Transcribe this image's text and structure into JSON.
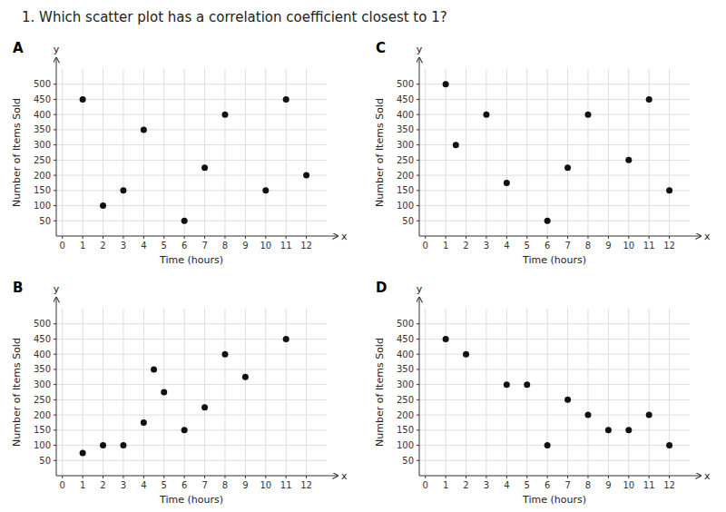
{
  "title": "1. Which scatter plot has a correlation coefficient closest to 1?",
  "chart_data": [
    {
      "type": "scatter",
      "title": "A",
      "x": [
        1,
        2,
        3,
        4,
        6,
        7,
        8,
        10,
        11,
        12
      ],
      "values": [
        450,
        100,
        150,
        350,
        50,
        225,
        400,
        150,
        450,
        200
      ],
      "color": "#111111",
      "xlabel": "Time (hours)",
      "ylabel": "Number of Items Sold",
      "annotations": [
        "x",
        "y"
      ],
      "xlim": [
        -0.3,
        13.0
      ],
      "ylim": [
        0,
        550
      ],
      "xticks": [
        0,
        1,
        2,
        3,
        4,
        5,
        6,
        7,
        8,
        9,
        10,
        11,
        12
      ],
      "yticks": [
        50,
        100,
        150,
        200,
        250,
        300,
        350,
        400,
        450,
        500
      ],
      "grid": true
    },
    {
      "type": "scatter",
      "title": "C",
      "x": [
        1,
        1.5,
        3,
        4,
        6,
        7,
        8,
        10,
        11,
        12
      ],
      "values": [
        500,
        300,
        400,
        175,
        50,
        225,
        400,
        250,
        450,
        150
      ],
      "color": "#111111",
      "xlabel": "Time (hours)",
      "ylabel": "Number of Items Sold",
      "annotations": [
        "x",
        "y"
      ],
      "xlim": [
        -0.3,
        13.0
      ],
      "ylim": [
        0,
        550
      ],
      "xticks": [
        0,
        1,
        2,
        3,
        4,
        5,
        6,
        7,
        8,
        9,
        10,
        11,
        12
      ],
      "yticks": [
        50,
        100,
        150,
        200,
        250,
        300,
        350,
        400,
        450,
        500
      ],
      "grid": true
    },
    {
      "type": "scatter",
      "title": "B",
      "x": [
        1,
        2,
        3,
        4,
        4.5,
        5,
        6,
        7,
        8,
        9,
        11
      ],
      "values": [
        75,
        100,
        100,
        175,
        350,
        275,
        150,
        225,
        400,
        325,
        450
      ],
      "color": "#111111",
      "xlabel": "Time (hours)",
      "ylabel": "Number of Items Sold",
      "annotations": [
        "x",
        "y"
      ],
      "xlim": [
        -0.3,
        13.0
      ],
      "ylim": [
        0,
        550
      ],
      "xticks": [
        0,
        1,
        2,
        3,
        4,
        5,
        6,
        7,
        8,
        9,
        10,
        11,
        12
      ],
      "yticks": [
        50,
        100,
        150,
        200,
        250,
        300,
        350,
        400,
        450,
        500
      ],
      "grid": true
    },
    {
      "type": "scatter",
      "title": "D",
      "x": [
        1,
        2,
        4,
        5,
        6,
        7,
        8,
        9,
        10,
        11,
        12
      ],
      "values": [
        450,
        400,
        300,
        300,
        100,
        250,
        200,
        150,
        150,
        200,
        100
      ],
      "color": "#111111",
      "xlabel": "Time (hours)",
      "ylabel": "Number of Items Sold",
      "annotations": [
        "x",
        "y"
      ],
      "xlim": [
        -0.3,
        13.0
      ],
      "ylim": [
        0,
        550
      ],
      "xticks": [
        0,
        1,
        2,
        3,
        4,
        5,
        6,
        7,
        8,
        9,
        10,
        11,
        12
      ],
      "yticks": [
        50,
        100,
        150,
        200,
        250,
        300,
        350,
        400,
        450,
        500
      ],
      "grid": true
    }
  ]
}
